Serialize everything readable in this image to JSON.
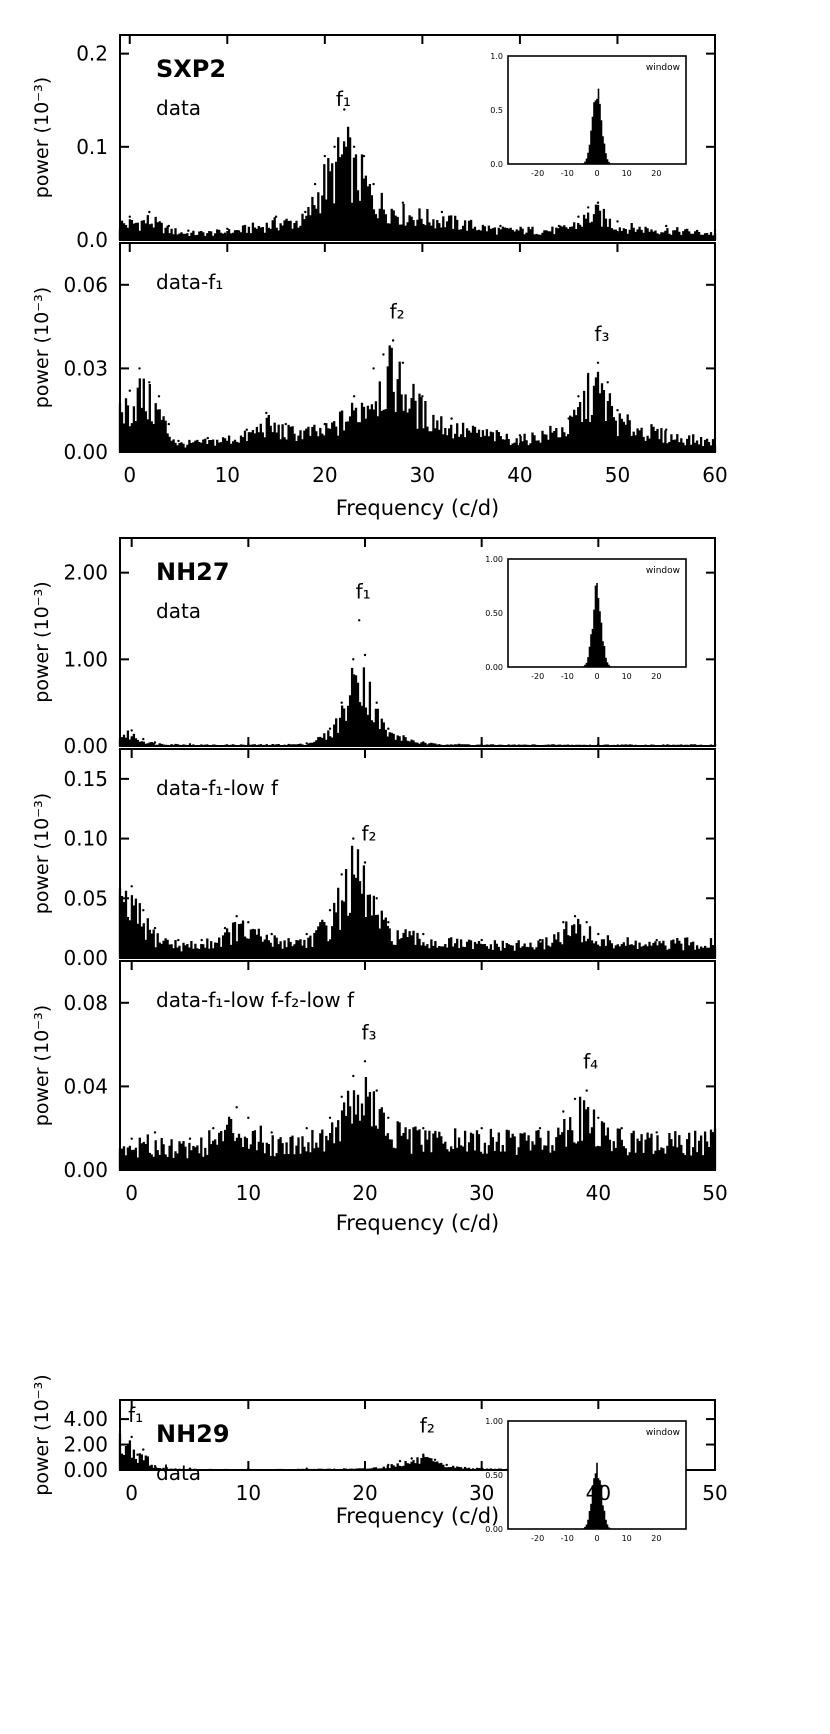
{
  "chart_data": [
    {
      "type": "line",
      "xlabel": "Frequency (c/d)",
      "x_ticks": [
        0,
        10,
        20,
        30,
        40,
        50,
        60
      ],
      "panels": [
        {
          "name": "SXP2",
          "subtitle": "data",
          "ylabel": "power (10⁻³)",
          "ylim": [
            0,
            0.22
          ],
          "y_ticks": [
            "0.0",
            "0.1",
            "0.2"
          ],
          "annotations": [
            {
              "text": "f₁",
              "x": 21.5
            }
          ],
          "inset": {
            "label": "window",
            "y_ticks": [
              "0.0",
              "0.5",
              "1.0"
            ],
            "x_ticks": [
              "-20",
              "-10",
              "0",
              "10",
              "20"
            ],
            "peak": 0.8
          },
          "series": {
            "x": [
              0,
              2,
              4,
              6,
              10,
              15,
              18,
              19,
              20,
              21,
              22,
              23,
              24,
              25,
              28,
              32,
              38,
              44,
              46,
              47,
              48,
              50,
              55,
              60
            ],
            "y": [
              0.025,
              0.03,
              0.015,
              0.01,
              0.012,
              0.025,
              0.03,
              0.06,
              0.09,
              0.1,
              0.14,
              0.1,
              0.09,
              0.06,
              0.04,
              0.03,
              0.015,
              0.015,
              0.025,
              0.035,
              0.04,
              0.02,
              0.015,
              0.01
            ]
          }
        },
        {
          "name": "",
          "subtitle": "data-f₁",
          "ylabel": "power (10⁻³)",
          "ylim": [
            0,
            0.075
          ],
          "y_ticks": [
            "0.00",
            "0.03",
            "0.06"
          ],
          "annotations": [
            {
              "text": "f₂",
              "x": 27
            },
            {
              "text": "f₃",
              "x": 48
            }
          ],
          "series": {
            "x": [
              0,
              1,
              2,
              3,
              4,
              5,
              8,
              12,
              14,
              16,
              20,
              23,
              25,
              26,
              27,
              28,
              30,
              33,
              40,
              45,
              46,
              47,
              48,
              49,
              50,
              55,
              60
            ],
            "y": [
              0.022,
              0.03,
              0.025,
              0.02,
              0.01,
              0.004,
              0.005,
              0.008,
              0.014,
              0.01,
              0.01,
              0.02,
              0.03,
              0.035,
              0.04,
              0.032,
              0.02,
              0.012,
              0.006,
              0.012,
              0.02,
              0.028,
              0.032,
              0.025,
              0.015,
              0.008,
              0.005
            ]
          }
        }
      ]
    },
    {
      "type": "line",
      "xlabel": "Frequency (c/d)",
      "x_ticks": [
        0,
        10,
        20,
        30,
        40,
        50
      ],
      "panels": [
        {
          "name": "NH27",
          "subtitle": "data",
          "ylabel": "power (10⁻³)",
          "ylim": [
            0,
            2.4
          ],
          "y_ticks": [
            "0.00",
            "1.00",
            "2.00"
          ],
          "annotations": [
            {
              "text": "f₁",
              "x": 19.5
            }
          ],
          "inset": {
            "label": "window",
            "y_ticks": [
              "0.00",
              "0.50",
              "1.00"
            ],
            "x_ticks": [
              "-20",
              "-10",
              "0",
              "10",
              "20"
            ],
            "peak": 0.8
          },
          "series": {
            "x": [
              0,
              1,
              2,
              5,
              10,
              15,
              17,
              18,
              19,
              19.5,
              20,
              21,
              22,
              25,
              30,
              40,
              50
            ],
            "y": [
              0.18,
              0.08,
              0.04,
              0.02,
              0.02,
              0.03,
              0.2,
              0.5,
              1.0,
              1.45,
              1.05,
              0.5,
              0.2,
              0.04,
              0.02,
              0.02,
              0.02
            ]
          }
        },
        {
          "name": "",
          "subtitle": "data-f₁-low f",
          "ylabel": "power (10⁻³)",
          "ylim": [
            0,
            0.175
          ],
          "y_ticks": [
            "0.00",
            "0.05",
            "0.10",
            "0.15"
          ],
          "annotations": [
            {
              "text": "f₂",
              "x": 20
            }
          ],
          "series": {
            "x": [
              0,
              1,
              2,
              4,
              6,
              8,
              9,
              10,
              12,
              15,
              17,
              18,
              19,
              20,
              21,
              22,
              25,
              30,
              35,
              37,
              38,
              39,
              40,
              45,
              50
            ],
            "y": [
              0.06,
              0.04,
              0.025,
              0.015,
              0.015,
              0.025,
              0.035,
              0.03,
              0.02,
              0.02,
              0.04,
              0.07,
              0.1,
              0.08,
              0.05,
              0.03,
              0.02,
              0.015,
              0.015,
              0.03,
              0.035,
              0.03,
              0.02,
              0.015,
              0.02
            ]
          }
        },
        {
          "name": "",
          "subtitle": "data-f₁-low f-f₂-low f",
          "ylabel": "power (10⁻³)",
          "ylim": [
            0,
            0.1
          ],
          "y_ticks": [
            "0.00",
            "0.04",
            "0.08"
          ],
          "annotations": [
            {
              "text": "f₃",
              "x": 20
            },
            {
              "text": "f₄",
              "x": 39
            }
          ],
          "series": {
            "x": [
              0,
              2,
              5,
              7,
              9,
              10,
              12,
              15,
              17,
              18,
              19,
              20,
              21,
              22,
              25,
              30,
              35,
              37,
              38,
              39,
              40,
              42,
              45,
              50
            ],
            "y": [
              0.015,
              0.018,
              0.015,
              0.02,
              0.03,
              0.025,
              0.018,
              0.02,
              0.025,
              0.035,
              0.045,
              0.052,
              0.038,
              0.025,
              0.02,
              0.02,
              0.02,
              0.028,
              0.034,
              0.038,
              0.025,
              0.02,
              0.018,
              0.02
            ]
          }
        }
      ]
    },
    {
      "type": "line",
      "xlabel": "Frequency (c/d)",
      "x_ticks": [
        0,
        10,
        20,
        30,
        40,
        50
      ],
      "panels": [
        {
          "name": "NH29",
          "subtitle": "data",
          "ylabel": "power (10⁻³)",
          "ylim": [
            0,
            5.5
          ],
          "y_ticks": [
            "0.00",
            "2.00",
            "4.00"
          ],
          "annotations": [
            {
              "text": "f₁",
              "x": 0
            },
            {
              "text": "f₂",
              "x": 25
            }
          ],
          "inset": {
            "label": "window",
            "y_ticks": [
              "0.00",
              "0.50",
              "1.00"
            ],
            "x_ticks": [
              "-20",
              "-10",
              "0",
              "10",
              "20"
            ],
            "peak": 0.7
          },
          "series": {
            "x": [
              -1,
              0,
              0.5,
              1,
              2,
              3,
              5,
              10,
              15,
              20,
              22,
              23,
              24,
              25,
              26,
              27,
              30,
              40,
              50
            ],
            "y": [
              3.0,
              2.6,
              1.2,
              1.6,
              0.3,
              0.15,
              0.1,
              0.08,
              0.1,
              0.15,
              0.4,
              0.7,
              0.9,
              1.2,
              0.8,
              0.4,
              0.15,
              0.08,
              0.05
            ]
          }
        }
      ]
    }
  ]
}
